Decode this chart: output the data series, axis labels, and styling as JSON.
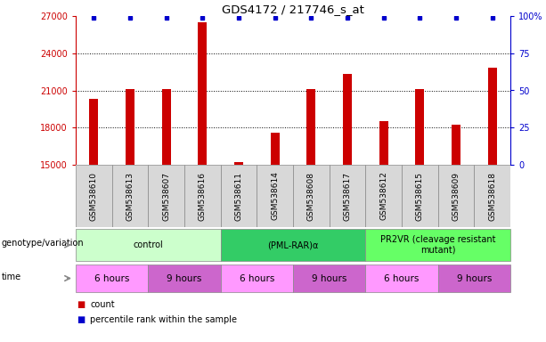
{
  "title": "GDS4172 / 217746_s_at",
  "samples": [
    "GSM538610",
    "GSM538613",
    "GSM538607",
    "GSM538616",
    "GSM538611",
    "GSM538614",
    "GSM538608",
    "GSM538617",
    "GSM538612",
    "GSM538615",
    "GSM538609",
    "GSM538618"
  ],
  "counts": [
    20300,
    21100,
    21100,
    26500,
    15200,
    17600,
    21100,
    22300,
    18500,
    21100,
    18200,
    22800
  ],
  "ylim_left": [
    15000,
    27000
  ],
  "yticks_left": [
    15000,
    18000,
    21000,
    24000,
    27000
  ],
  "ylim_right": [
    0,
    100
  ],
  "yticks_right": [
    0,
    25,
    50,
    75,
    100
  ],
  "ytick_labels_right": [
    "0",
    "25",
    "50",
    "75",
    "100%"
  ],
  "bar_color": "#cc0000",
  "dot_color": "#0000cc",
  "groups": [
    {
      "label": "control",
      "start": 0,
      "end": 4,
      "color": "#ccffcc"
    },
    {
      "label": "(PML-RAR)α",
      "start": 4,
      "end": 8,
      "color": "#33cc66"
    },
    {
      "label": "PR2VR (cleavage resistant\nmutant)",
      "start": 8,
      "end": 12,
      "color": "#66ff66"
    }
  ],
  "time_groups": [
    {
      "label": "6 hours",
      "start": 0,
      "end": 2,
      "color": "#ff99ff"
    },
    {
      "label": "9 hours",
      "start": 2,
      "end": 4,
      "color": "#cc66cc"
    },
    {
      "label": "6 hours",
      "start": 4,
      "end": 6,
      "color": "#ff99ff"
    },
    {
      "label": "9 hours",
      "start": 6,
      "end": 8,
      "color": "#cc66cc"
    },
    {
      "label": "6 hours",
      "start": 8,
      "end": 10,
      "color": "#ff99ff"
    },
    {
      "label": "9 hours",
      "start": 10,
      "end": 12,
      "color": "#cc66cc"
    }
  ],
  "legend_items": [
    {
      "label": "count",
      "color": "#cc0000"
    },
    {
      "label": "percentile rank within the sample",
      "color": "#0000cc"
    }
  ],
  "genotype_label": "genotype/variation",
  "time_label": "time",
  "sample_box_color": "#d8d8d8",
  "sample_box_edge": "#888888"
}
